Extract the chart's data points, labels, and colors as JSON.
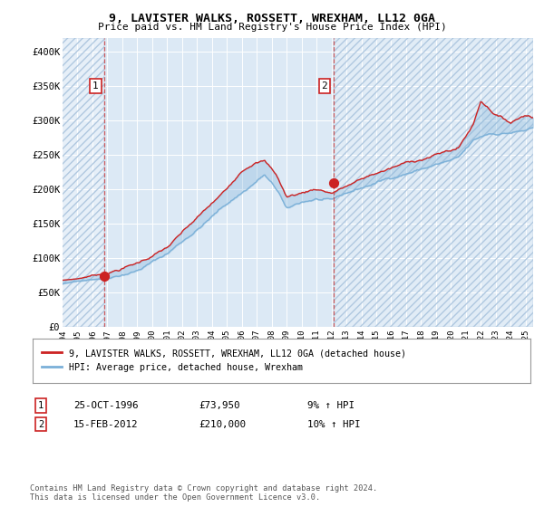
{
  "title": "9, LAVISTER WALKS, ROSSETT, WREXHAM, LL12 0GA",
  "subtitle": "Price paid vs. HM Land Registry's House Price Index (HPI)",
  "plot_bg_color": "#dce9f5",
  "hpi_color": "#7ab0d8",
  "price_color": "#cc2222",
  "marker_color": "#cc2222",
  "dashed_line_color": "#cc4444",
  "sale1_date_num": 1996.82,
  "sale1_price": 73950,
  "sale2_date_num": 2012.12,
  "sale2_price": 210000,
  "ylim": [
    0,
    420000
  ],
  "xlim_start": 1994.0,
  "xlim_end": 2025.5,
  "yticks": [
    0,
    50000,
    100000,
    150000,
    200000,
    250000,
    300000,
    350000,
    400000
  ],
  "ytick_labels": [
    "£0",
    "£50K",
    "£100K",
    "£150K",
    "£200K",
    "£250K",
    "£300K",
    "£350K",
    "£400K"
  ],
  "xtick_years": [
    1994,
    1995,
    1996,
    1997,
    1998,
    1999,
    2000,
    2001,
    2002,
    2003,
    2004,
    2005,
    2006,
    2007,
    2008,
    2009,
    2010,
    2011,
    2012,
    2013,
    2014,
    2015,
    2016,
    2017,
    2018,
    2019,
    2020,
    2021,
    2022,
    2023,
    2024,
    2025
  ],
  "legend_label1": "9, LAVISTER WALKS, ROSSETT, WREXHAM, LL12 0GA (detached house)",
  "legend_label2": "HPI: Average price, detached house, Wrexham",
  "note1_label": "1",
  "note1_date": "25-OCT-1996",
  "note1_price": "£73,950",
  "note1_hpi": "9% ↑ HPI",
  "note2_label": "2",
  "note2_date": "15-FEB-2012",
  "note2_price": "£210,000",
  "note2_hpi": "10% ↑ HPI",
  "footer": "Contains HM Land Registry data © Crown copyright and database right 2024.\nThis data is licensed under the Open Government Licence v3.0."
}
